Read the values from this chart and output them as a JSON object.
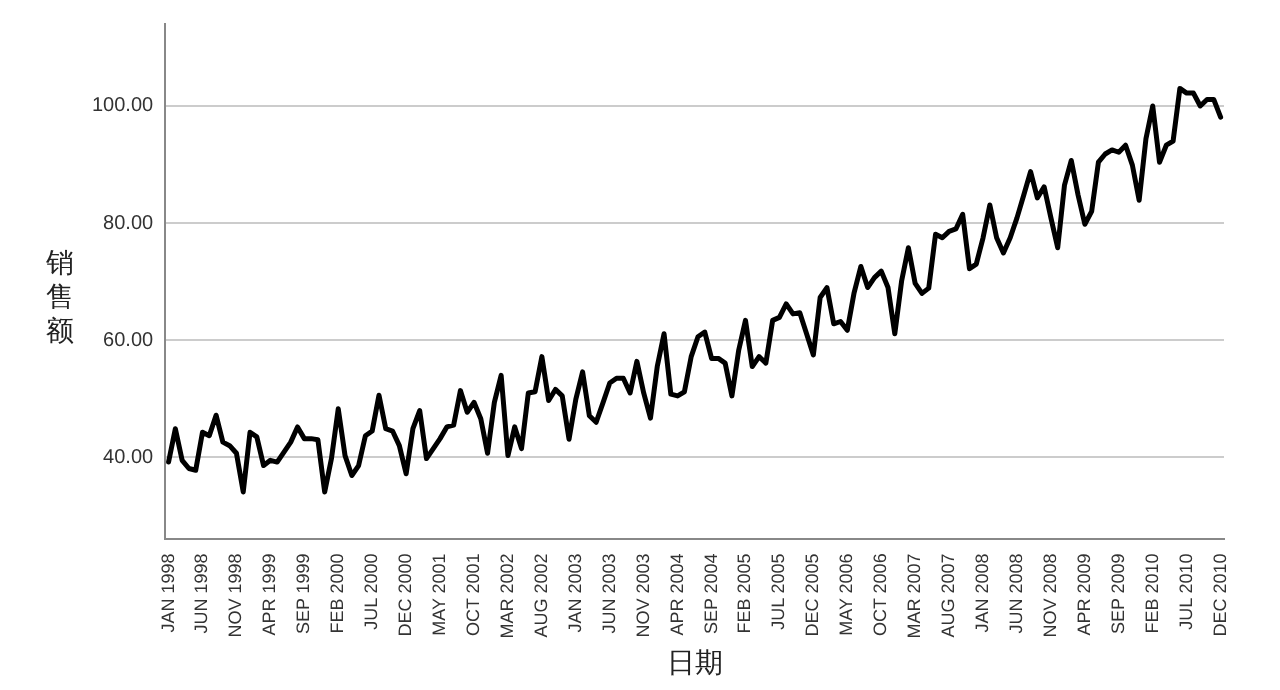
{
  "chart_data": {
    "type": "line",
    "xlabel": "日期",
    "ylabel": "销售额",
    "color": "#000000",
    "marker": "none",
    "line_style": "solid",
    "grid": "y",
    "legend": false,
    "ylim": [
      26,
      114
    ],
    "yticks": [
      {
        "value": 40,
        "label": "40.00"
      },
      {
        "value": 60,
        "label": "60.00"
      },
      {
        "value": 80,
        "label": "80.00"
      },
      {
        "value": 100,
        "label": "100.00"
      }
    ],
    "categories": [
      "JAN 1998",
      null,
      null,
      null,
      null,
      "JUN 1998",
      null,
      null,
      null,
      null,
      "NOV 1998",
      null,
      null,
      null,
      null,
      "APR 1999",
      null,
      null,
      null,
      null,
      "SEP 1999",
      null,
      null,
      null,
      null,
      "FEB 2000",
      null,
      null,
      null,
      null,
      "JUL 2000",
      null,
      null,
      null,
      null,
      "DEC 2000",
      null,
      null,
      null,
      null,
      "MAY 2001",
      null,
      null,
      null,
      null,
      "OCT 2001",
      null,
      null,
      null,
      null,
      "MAR 2002",
      null,
      null,
      null,
      null,
      "AUG 2002",
      null,
      null,
      null,
      null,
      "JAN 2003",
      null,
      null,
      null,
      null,
      "JUN 2003",
      null,
      null,
      null,
      null,
      "NOV 2003",
      null,
      null,
      null,
      null,
      "APR 2004",
      null,
      null,
      null,
      null,
      "SEP 2004",
      null,
      null,
      null,
      null,
      "FEB 2005",
      null,
      null,
      null,
      null,
      "JUL 2005",
      null,
      null,
      null,
      null,
      "DEC 2005",
      null,
      null,
      null,
      null,
      "MAY 2006",
      null,
      null,
      null,
      null,
      "OCT 2006",
      null,
      null,
      null,
      null,
      "MAR 2007",
      null,
      null,
      null,
      null,
      "AUG 2007",
      null,
      null,
      null,
      null,
      "JAN 2008",
      null,
      null,
      null,
      null,
      "JUN 2008",
      null,
      null,
      null,
      null,
      "NOV 2008",
      null,
      null,
      null,
      null,
      "APR 2009",
      null,
      null,
      null,
      null,
      "SEP 2009",
      null,
      null,
      null,
      null,
      "FEB 2010",
      null,
      null,
      null,
      null,
      "JUL 2010",
      null,
      null,
      null,
      null,
      "DEC 2010"
    ],
    "values": [
      39.2,
      44.9,
      39.5,
      38.1,
      37.8,
      44.3,
      43.7,
      47.2,
      42.6,
      42.0,
      40.7,
      34.1,
      44.3,
      43.5,
      38.6,
      39.5,
      39.2,
      40.9,
      42.6,
      45.2,
      43.2,
      43.2,
      43.0,
      34.1,
      39.8,
      48.3,
      40.3,
      36.9,
      38.6,
      43.7,
      44.5,
      50.6,
      44.9,
      44.5,
      42.0,
      37.2,
      44.9,
      48.0,
      39.8,
      41.5,
      43.2,
      45.2,
      45.5,
      51.4,
      47.7,
      49.4,
      46.6,
      40.7,
      49.4,
      54.0,
      40.3,
      45.2,
      41.5,
      51.0,
      51.2,
      57.2,
      49.7,
      51.6,
      50.5,
      43.1,
      49.9,
      54.6,
      47.1,
      46.0,
      49.3,
      52.7,
      53.5,
      53.5,
      51.0,
      56.4,
      51.0,
      46.7,
      55.5,
      61.1,
      50.8,
      50.5,
      51.2,
      57.2,
      60.6,
      61.4,
      56.9,
      56.9,
      56.1,
      50.5,
      58.3,
      63.4,
      55.5,
      57.2,
      56.1,
      63.4,
      63.9,
      66.2,
      64.5,
      64.7,
      61.1,
      57.5,
      67.3,
      69.0,
      62.8,
      63.2,
      61.7,
      68.1,
      72.6,
      69.0,
      70.7,
      71.8,
      69.0,
      61.1,
      70.1,
      75.8,
      69.7,
      68.0,
      68.9,
      78.1,
      77.5,
      78.6,
      79.0,
      81.5,
      72.2,
      73.0,
      77.5,
      83.1,
      77.5,
      74.9,
      77.5,
      80.9,
      84.8,
      88.8,
      84.3,
      86.2,
      80.9,
      75.8,
      86.5,
      90.7,
      84.8,
      79.8,
      82.0,
      90.4,
      91.8,
      92.5,
      92.1,
      93.3,
      89.9,
      83.9,
      94.4,
      100.0,
      90.4,
      93.3,
      94.0,
      103.0,
      102.2,
      102.2,
      100.0,
      101.1,
      101.1,
      98.1
    ]
  }
}
